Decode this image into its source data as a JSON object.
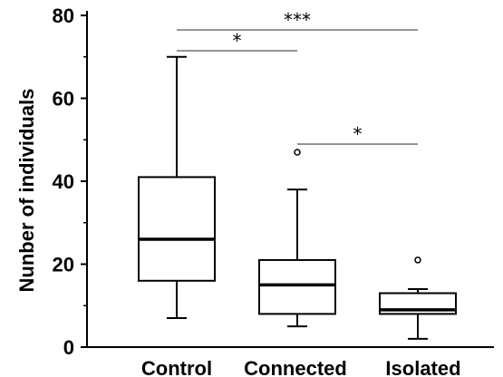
{
  "chart_data": {
    "type": "box",
    "ylabel": "Nunber of individuals",
    "xlabel": "",
    "ylim": [
      0,
      80
    ],
    "yticks": [
      0,
      20,
      40,
      60,
      80
    ],
    "categories": [
      "Control",
      "Connected",
      "Isolated"
    ],
    "boxes": [
      {
        "category": "Control",
        "min": 7,
        "q1": 16,
        "median": 26,
        "q3": 41,
        "max": 70,
        "outliers": []
      },
      {
        "category": "Connected",
        "min": 5,
        "q1": 8,
        "median": 15,
        "q3": 21,
        "max": 38,
        "outliers": [
          47
        ]
      },
      {
        "category": "Isolated",
        "min": 2,
        "q1": 8,
        "median": 9,
        "q3": 13,
        "max": 14,
        "outliers": [
          21
        ]
      }
    ],
    "significance": [
      {
        "from": "Control",
        "to": "Isolated",
        "label": "***"
      },
      {
        "from": "Control",
        "to": "Connected",
        "label": "*"
      },
      {
        "from": "Connected",
        "to": "Isolated",
        "label": "*"
      }
    ],
    "grid": false
  }
}
